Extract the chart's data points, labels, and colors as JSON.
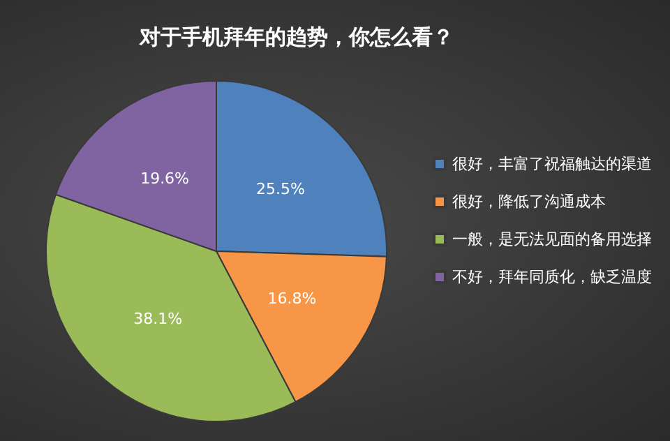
{
  "chart_data": {
    "type": "pie",
    "title": "对于手机拜年的趋势，你怎么看？",
    "categories": [
      "很好，丰富了祝福触达的渠道",
      "很好，降低了沟通成本",
      "一般，是无法见面的备用选择",
      "不好，拜年同质化，缺乏温度"
    ],
    "values": [
      25.5,
      16.8,
      38.1,
      19.6
    ],
    "colors": [
      "#4f81bd",
      "#f79646",
      "#9bbb59",
      "#8064a2"
    ],
    "value_labels": [
      "25.5%",
      "16.8%",
      "38.1%",
      "19.6%"
    ],
    "legend": "right"
  }
}
